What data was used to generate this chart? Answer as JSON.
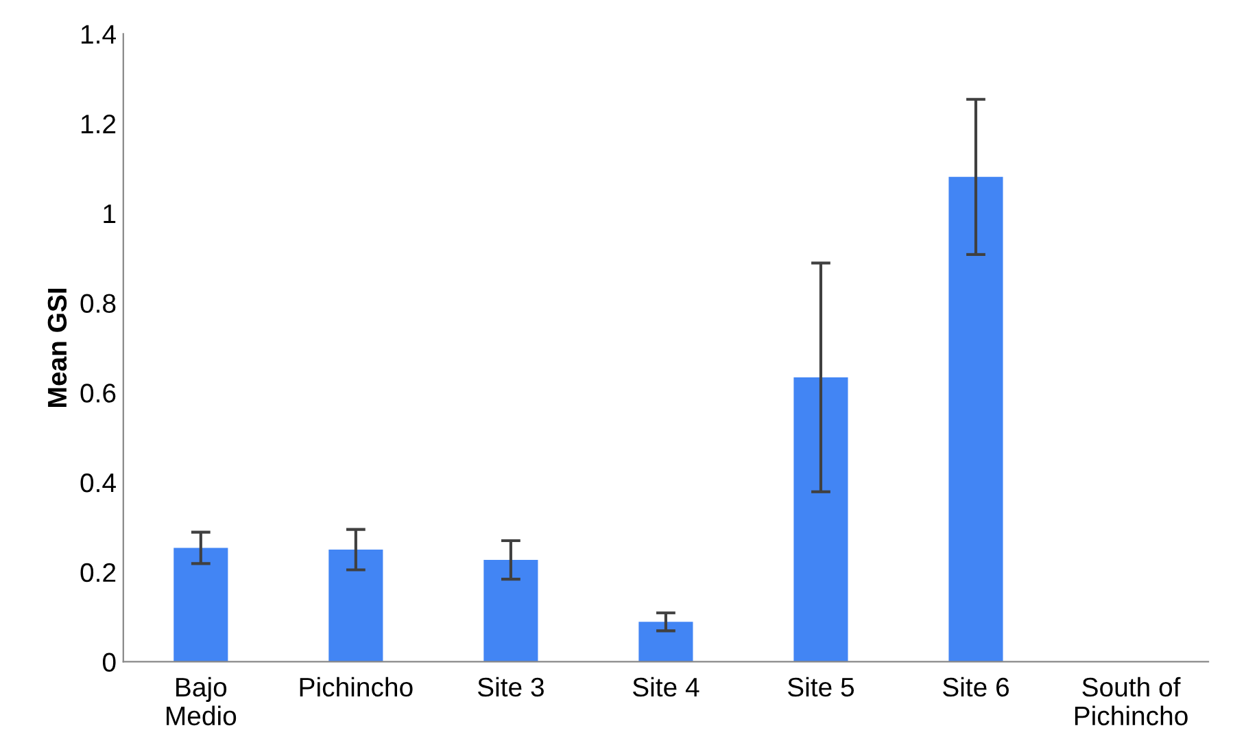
{
  "chart_data": {
    "type": "bar",
    "ylabel": "Mean GSI",
    "categories": [
      "Bajo Medio",
      "Pichincho",
      "Site 3",
      "Site 4",
      "Site 5",
      "Site 6",
      "South of Pichincho"
    ],
    "values": [
      0.254,
      0.25,
      0.227,
      0.089,
      0.634,
      1.081,
      null
    ],
    "errors": [
      0.035,
      0.045,
      0.043,
      0.02,
      0.255,
      0.173,
      null
    ],
    "color": "#4285f4",
    "ylim": [
      0,
      1.4
    ],
    "yticks": [
      0,
      0.2,
      0.4,
      0.6,
      0.8,
      1,
      1.2,
      1.4
    ],
    "grid": false
  }
}
